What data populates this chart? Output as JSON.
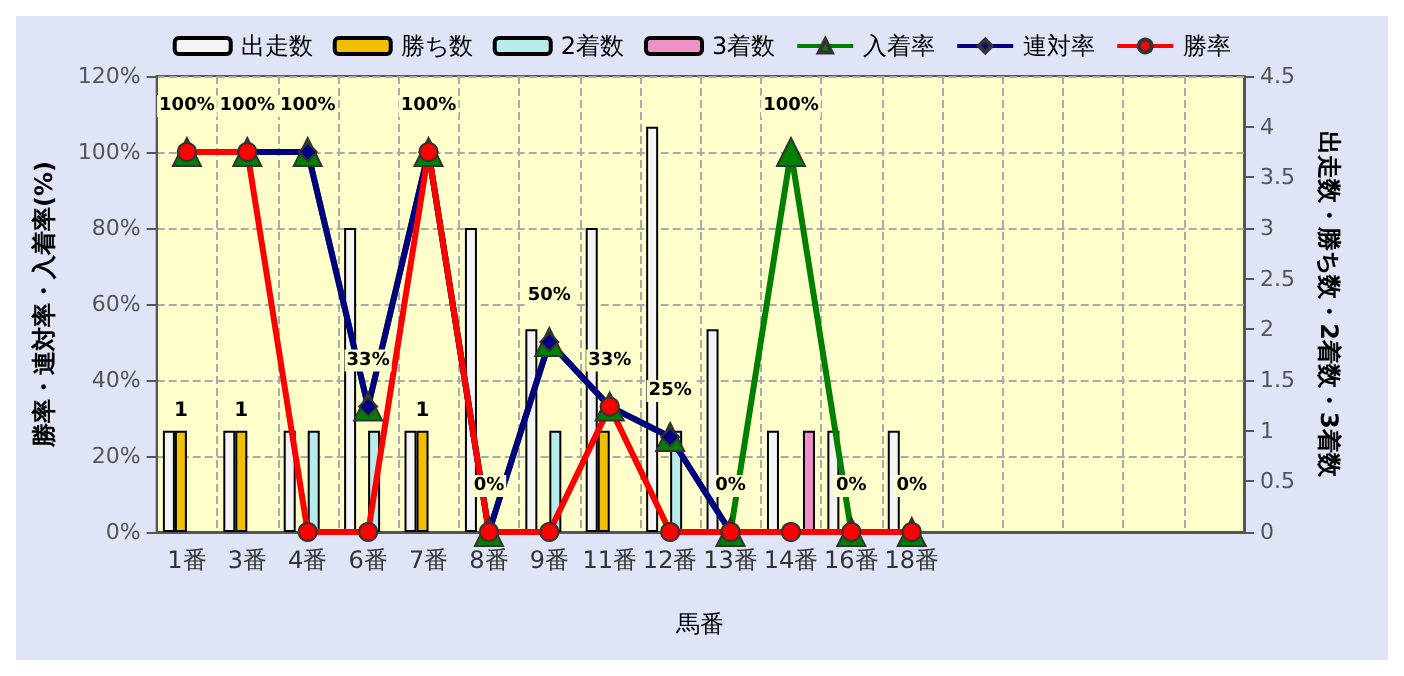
{
  "chart_data": {
    "type": "bar",
    "xlabel": "馬番",
    "ylabel": "勝率・連対率・入着率(%)",
    "y2label": "出走数・勝ち数・2着数・3着数",
    "categories": [
      "1番",
      "3番",
      "4番",
      "6番",
      "7番",
      "8番",
      "9番",
      "11番",
      "12番",
      "13番",
      "14番",
      "16番",
      "18番",
      null,
      null,
      null,
      null,
      null
    ],
    "series": [
      {
        "name": "出走数",
        "axis": "y2",
        "color": "#f4f4f4",
        "values": [
          1,
          1,
          1,
          3,
          1,
          3,
          2,
          3,
          4,
          2,
          1,
          1,
          1,
          null,
          null,
          null,
          null,
          null
        ]
      },
      {
        "name": "勝ち数",
        "axis": "y2",
        "color": "#f0c000",
        "values": [
          1,
          1,
          0,
          0,
          1,
          0,
          0,
          1,
          0,
          0,
          0,
          0,
          0,
          null,
          null,
          null,
          null,
          null
        ],
        "value_labels": [
          "1",
          "1",
          null,
          null,
          "1",
          null,
          null,
          null,
          null,
          null,
          null,
          null,
          null,
          null,
          null,
          null,
          null,
          null
        ]
      },
      {
        "name": "2着数",
        "axis": "y2",
        "color": "#b8ecec",
        "values": [
          0,
          0,
          1,
          1,
          0,
          0,
          1,
          0,
          1,
          0,
          0,
          0,
          0,
          null,
          null,
          null,
          null,
          null
        ]
      },
      {
        "name": "3着数",
        "axis": "y2",
        "color": "#f090c8",
        "values": [
          0,
          0,
          0,
          0,
          0,
          0,
          0,
          0,
          0,
          0,
          1,
          0,
          0,
          null,
          null,
          null,
          null,
          null
        ]
      },
      {
        "name": "入着率",
        "type": "line",
        "marker": "triangle",
        "color": "#008000",
        "values": [
          100,
          100,
          100,
          33,
          100,
          0,
          50,
          33,
          25,
          0,
          100,
          0,
          0,
          null,
          null,
          null,
          null,
          null
        ],
        "value_labels": [
          "100%",
          "100%",
          "100%",
          "33%",
          "100%",
          "0%",
          "50%",
          "33%",
          "25%",
          "0%",
          "100%",
          "0%",
          "0%",
          null,
          null,
          null,
          null,
          null
        ]
      },
      {
        "name": "連対率",
        "type": "line",
        "marker": "diamond",
        "color": "#000080",
        "values": [
          100,
          100,
          100,
          33,
          100,
          0,
          50,
          33,
          25,
          0,
          0,
          0,
          0,
          null,
          null,
          null,
          null,
          null
        ]
      },
      {
        "name": "勝率",
        "type": "line",
        "marker": "circle",
        "color": "#ff0000",
        "values": [
          100,
          100,
          0,
          0,
          100,
          0,
          0,
          33,
          0,
          0,
          0,
          0,
          0,
          null,
          null,
          null,
          null,
          null
        ]
      }
    ],
    "ylim": [
      0,
      120
    ],
    "yticks": [
      {
        "value": 0,
        "label": "0%"
      },
      {
        "value": 20,
        "label": "20%"
      },
      {
        "value": 40,
        "label": "40%"
      },
      {
        "value": 60,
        "label": "60%"
      },
      {
        "value": 80,
        "label": "80%"
      },
      {
        "value": 100,
        "label": "100%"
      },
      {
        "value": 120,
        "label": "120%"
      }
    ],
    "y2lim": [
      0,
      4.5
    ],
    "y2ticks": [
      0,
      0.5,
      1,
      1.5,
      2,
      2.5,
      3,
      3.5,
      4,
      4.5
    ],
    "grid": true,
    "legend": "top"
  }
}
